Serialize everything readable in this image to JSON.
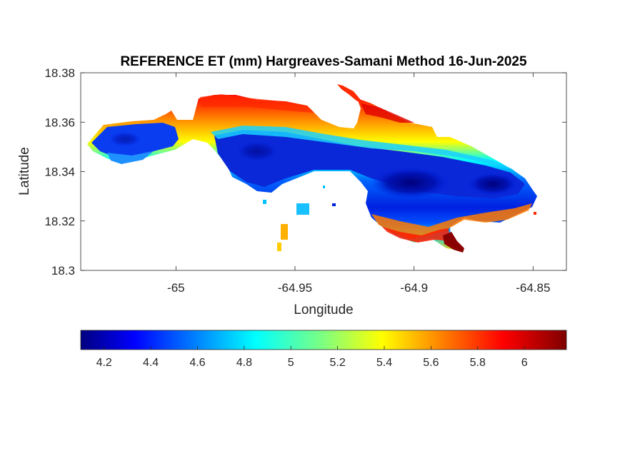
{
  "figure": {
    "title": "REFERENCE ET (mm) Hargreaves-Samani Method  16-Jun-2025",
    "xlabel": "Longitude",
    "ylabel": "Latitude"
  },
  "chart_data": {
    "type": "heatmap",
    "title": "REFERENCE ET (mm) Hargreaves-Samani Method  16-Jun-2025",
    "xlabel": "Longitude",
    "ylabel": "Latitude",
    "xlim": [
      -65.04,
      -64.836
    ],
    "ylim": [
      18.3,
      18.38
    ],
    "x_ticks": [
      -65,
      -64.95,
      -64.9,
      -64.85
    ],
    "x_tick_labels": [
      "-65",
      "-64.95",
      "-64.9",
      "-64.85"
    ],
    "y_ticks": [
      18.3,
      18.32,
      18.34,
      18.36,
      18.38
    ],
    "y_tick_labels": [
      "18.3",
      "18.32",
      "18.34",
      "18.36",
      "18.38"
    ],
    "colorbar": {
      "colormap": "jet",
      "orientation": "horizontal",
      "range": [
        4.1,
        6.18
      ],
      "ticks": [
        4.2,
        4.4,
        4.6,
        4.8,
        5,
        5.2,
        5.4,
        5.6,
        5.8,
        6
      ],
      "tick_labels": [
        "4.2",
        "4.4",
        "4.6",
        "4.8",
        "5",
        "5.2",
        "5.4",
        "5.6",
        "5.8",
        "6"
      ]
    },
    "field_description_values": {
      "north_coast": 5.9,
      "central_band": 4.4,
      "minimum_core": 4.15,
      "south_coast": 5.8,
      "maximum_southeast": 6.15
    }
  }
}
